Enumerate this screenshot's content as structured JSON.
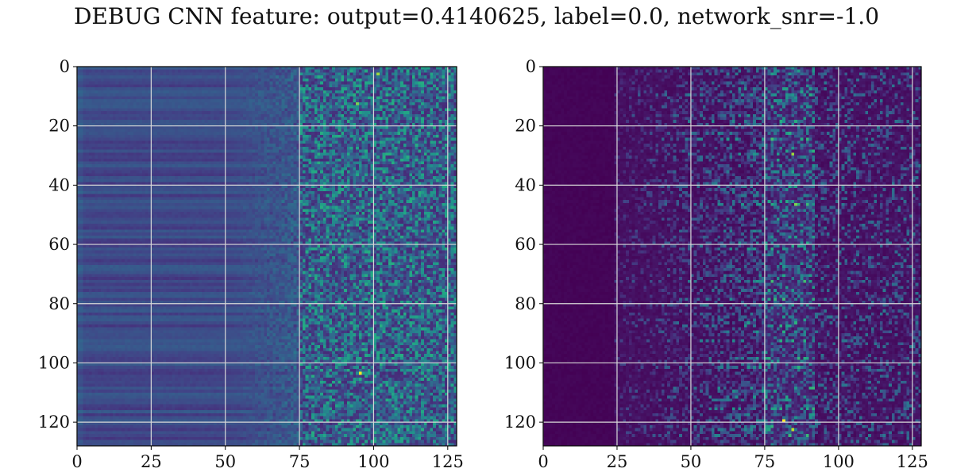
{
  "title": "DEBUG CNN feature: output=0.4140625, label=0.0, network_snr=-1.0",
  "colors": {
    "low": "#440154",
    "mid_low": "#3b528b",
    "mid": "#21918c",
    "mid_high": "#5ec962",
    "high": "#fde725",
    "grid": "#d8d8d8",
    "axis": "#000000"
  },
  "chart_data": [
    {
      "type": "heatmap",
      "colormap": "viridis",
      "rows": 128,
      "cols": 128,
      "xlim": [
        0,
        128
      ],
      "ylim": [
        128,
        0
      ],
      "xticks": [
        0,
        25,
        50,
        75,
        100,
        125
      ],
      "yticks": [
        0,
        20,
        40,
        60,
        80,
        100,
        120
      ],
      "grid": true,
      "description_of_pattern": "",
      "intensity_profile": {
        "columns_0_50": "uniform low-medium with horizontal banding",
        "columns_50_75": "gradual increase",
        "columns_75_128": "noisy medium-high values"
      },
      "peak_cells": [
        {
          "row": 103,
          "col": 95,
          "value": 1.0
        },
        {
          "row": 2,
          "col": 101,
          "value": 0.85
        },
        {
          "row": 12,
          "col": 94,
          "value": 0.8
        }
      ]
    },
    {
      "type": "heatmap",
      "colormap": "viridis",
      "rows": 128,
      "cols": 128,
      "xlim": [
        0,
        128
      ],
      "ylim": [
        128,
        0
      ],
      "xticks": [
        0,
        25,
        50,
        75,
        100,
        125
      ],
      "yticks": [
        0,
        20,
        40,
        60,
        80,
        100,
        120
      ],
      "grid": true,
      "description_of_pattern": "",
      "intensity_profile": {
        "columns_0_25": "near-zero",
        "columns_25_75": "sparse low activations",
        "columns_75_90": "strongest activations",
        "columns_90_128": "sparse medium activations"
      },
      "peak_cells": [
        {
          "row": 119,
          "col": 81,
          "value": 1.0
        },
        {
          "row": 122,
          "col": 84,
          "value": 0.9
        },
        {
          "row": 29,
          "col": 84,
          "value": 0.85
        },
        {
          "row": 46,
          "col": 85,
          "value": 0.8
        }
      ]
    }
  ]
}
